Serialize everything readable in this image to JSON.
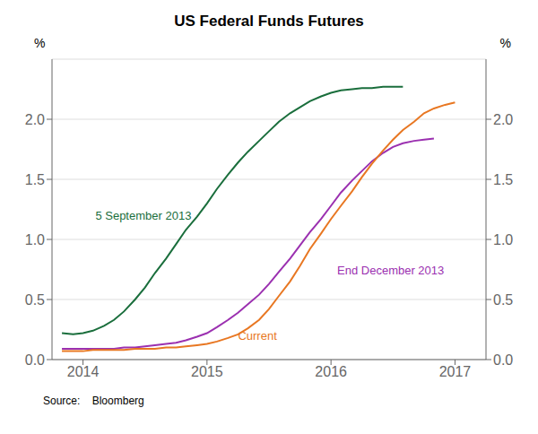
{
  "chart_data": {
    "type": "line",
    "title": "US Federal Funds Futures",
    "source": "Source:    Bloomberg",
    "y_label": "%",
    "y2_label": "%",
    "xlim": [
      2013.75,
      2017.25
    ],
    "xticks": [
      2014,
      2015,
      2016,
      2017
    ],
    "ylim": [
      0.0,
      2.5
    ],
    "yticks": [
      {
        "value": 0.0,
        "label": "0.0"
      },
      {
        "value": 0.5,
        "label": "0.5"
      },
      {
        "value": 1.0,
        "label": "1.0"
      },
      {
        "value": 1.5,
        "label": "1.5"
      },
      {
        "value": 2.0,
        "label": "2.0"
      }
    ],
    "y2lim": [
      0.0,
      2.5
    ],
    "y2ticks": [
      {
        "value": 0.0,
        "label": "0.0"
      },
      {
        "value": 0.5,
        "label": "0.5"
      },
      {
        "value": 1.0,
        "label": "1.0"
      },
      {
        "value": 1.5,
        "label": "1.5"
      },
      {
        "value": 2.0,
        "label": "2.0"
      }
    ],
    "grid": "y",
    "annotations": [
      {
        "text": "5 September 2013",
        "x": 2014.1,
        "y": 1.2,
        "color": "#1a6e3c"
      },
      {
        "text": "End December 2013",
        "x": 2016.05,
        "y": 0.74,
        "color": "#9b30b0"
      },
      {
        "text": "Current",
        "x": 2015.25,
        "y": 0.2,
        "color": "#e87722"
      }
    ],
    "series": [
      {
        "name": "5 September 2013",
        "color": "#1a6e3c",
        "x": [
          2013.83,
          2013.92,
          2014.0,
          2014.08,
          2014.17,
          2014.25,
          2014.33,
          2014.42,
          2014.5,
          2014.58,
          2014.67,
          2014.75,
          2014.83,
          2014.92,
          2015.0,
          2015.08,
          2015.17,
          2015.25,
          2015.33,
          2015.42,
          2015.5,
          2015.58,
          2015.67,
          2015.75,
          2015.83,
          2015.92,
          2016.0,
          2016.08,
          2016.17,
          2016.25,
          2016.33,
          2016.42,
          2016.5,
          2016.58
        ],
        "values": [
          0.22,
          0.21,
          0.22,
          0.24,
          0.28,
          0.33,
          0.4,
          0.5,
          0.6,
          0.72,
          0.84,
          0.96,
          1.08,
          1.19,
          1.3,
          1.42,
          1.54,
          1.64,
          1.73,
          1.82,
          1.9,
          1.98,
          2.05,
          2.1,
          2.15,
          2.19,
          2.22,
          2.24,
          2.25,
          2.26,
          2.26,
          2.27,
          2.27,
          2.27
        ]
      },
      {
        "name": "End December 2013",
        "color": "#9b30b0",
        "x": [
          2013.83,
          2013.92,
          2014.0,
          2014.08,
          2014.17,
          2014.25,
          2014.33,
          2014.42,
          2014.5,
          2014.58,
          2014.67,
          2014.75,
          2014.83,
          2014.92,
          2015.0,
          2015.08,
          2015.17,
          2015.25,
          2015.33,
          2015.42,
          2015.5,
          2015.58,
          2015.67,
          2015.75,
          2015.83,
          2015.92,
          2016.0,
          2016.08,
          2016.17,
          2016.25,
          2016.33,
          2016.42,
          2016.5,
          2016.58,
          2016.67,
          2016.75,
          2016.83
        ],
        "values": [
          0.09,
          0.09,
          0.09,
          0.09,
          0.09,
          0.09,
          0.1,
          0.1,
          0.11,
          0.12,
          0.13,
          0.14,
          0.16,
          0.19,
          0.22,
          0.27,
          0.33,
          0.39,
          0.46,
          0.54,
          0.63,
          0.73,
          0.84,
          0.95,
          1.06,
          1.17,
          1.28,
          1.39,
          1.49,
          1.57,
          1.65,
          1.72,
          1.77,
          1.8,
          1.82,
          1.83,
          1.84
        ]
      },
      {
        "name": "Current",
        "color": "#e87722",
        "x": [
          2013.83,
          2013.92,
          2014.0,
          2014.08,
          2014.17,
          2014.25,
          2014.33,
          2014.42,
          2014.5,
          2014.58,
          2014.67,
          2014.75,
          2014.83,
          2014.92,
          2015.0,
          2015.08,
          2015.17,
          2015.25,
          2015.33,
          2015.42,
          2015.5,
          2015.58,
          2015.67,
          2015.75,
          2015.83,
          2015.92,
          2016.0,
          2016.08,
          2016.17,
          2016.25,
          2016.33,
          2016.42,
          2016.5,
          2016.58,
          2016.67,
          2016.75,
          2016.83,
          2016.92,
          2017.0
        ],
        "values": [
          0.07,
          0.07,
          0.07,
          0.08,
          0.08,
          0.08,
          0.08,
          0.09,
          0.09,
          0.09,
          0.1,
          0.1,
          0.11,
          0.12,
          0.13,
          0.15,
          0.18,
          0.21,
          0.26,
          0.33,
          0.42,
          0.53,
          0.65,
          0.78,
          0.92,
          1.05,
          1.17,
          1.28,
          1.4,
          1.52,
          1.63,
          1.74,
          1.83,
          1.91,
          1.98,
          2.05,
          2.09,
          2.12,
          2.14
        ]
      }
    ]
  }
}
